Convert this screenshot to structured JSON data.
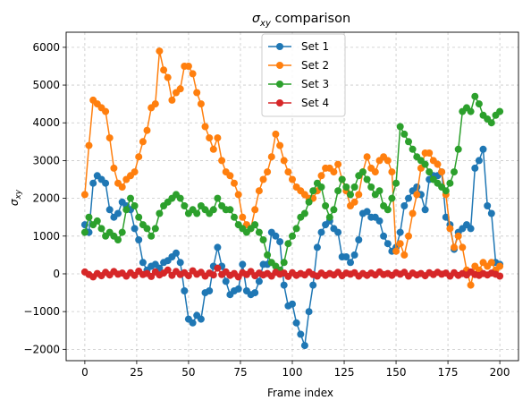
{
  "chart_data": {
    "type": "line",
    "title_prefix": "σ",
    "title_sub": "xy",
    "title_suffix": " comparison",
    "xlabel": "Frame index",
    "ylabel_prefix": "σ",
    "ylabel_sub": "xy",
    "xlim": [
      -9,
      209
    ],
    "ylim": [
      -2300,
      6400
    ],
    "xticks": [
      0,
      25,
      50,
      75,
      100,
      125,
      150,
      175,
      200
    ],
    "yticks": [
      -2000,
      -1000,
      0,
      1000,
      2000,
      3000,
      4000,
      5000,
      6000
    ],
    "grid": true,
    "legend_position": "top-center",
    "series": [
      {
        "name": "Set 1",
        "color": "#1f77b4",
        "x": [
          0,
          2,
          4,
          6,
          8,
          10,
          12,
          14,
          16,
          18,
          20,
          22,
          24,
          26,
          28,
          30,
          32,
          34,
          36,
          38,
          40,
          42,
          44,
          46,
          48,
          50,
          52,
          54,
          56,
          58,
          60,
          62,
          64,
          66,
          68,
          70,
          72,
          74,
          76,
          78,
          80,
          82,
          84,
          86,
          88,
          90,
          92,
          94,
          96,
          98,
          100,
          102,
          104,
          106,
          108,
          110,
          112,
          114,
          116,
          118,
          120,
          122,
          124,
          126,
          128,
          130,
          132,
          134,
          136,
          138,
          140,
          142,
          144,
          146,
          148,
          150,
          152,
          154,
          156,
          158,
          160,
          162,
          164,
          166,
          168,
          170,
          172,
          174,
          176,
          178,
          180,
          182,
          184,
          186,
          188,
          190,
          192,
          194,
          196,
          198,
          200
        ],
        "values": [
          1300,
          1100,
          2400,
          2600,
          2500,
          2400,
          1700,
          1500,
          1600,
          1900,
          1800,
          1700,
          1200,
          900,
          300,
          100,
          200,
          250,
          150,
          300,
          350,
          450,
          550,
          300,
          -450,
          -1200,
          -1300,
          -1100,
          -1200,
          -500,
          -450,
          200,
          700,
          200,
          -200,
          -550,
          -450,
          -400,
          250,
          -450,
          -550,
          -500,
          -200,
          250,
          250,
          1100,
          1000,
          850,
          -300,
          -850,
          -800,
          -1300,
          -1600,
          -1900,
          -1000,
          -300,
          700,
          1100,
          1300,
          1400,
          1200,
          1100,
          450,
          450,
          300,
          500,
          900,
          1600,
          1650,
          1500,
          1500,
          1400,
          1000,
          800,
          600,
          700,
          1100,
          1800,
          2000,
          2200,
          2300,
          2100,
          1700,
          2500,
          2600,
          2600,
          2700,
          1500,
          1300,
          650,
          1100,
          1200,
          1300,
          1200,
          2800,
          3000,
          3300,
          1800,
          1600,
          300,
          250
        ]
      },
      {
        "name": "Set 2",
        "color": "#ff7f0e",
        "x": [
          0,
          2,
          4,
          6,
          8,
          10,
          12,
          14,
          16,
          18,
          20,
          22,
          24,
          26,
          28,
          30,
          32,
          34,
          36,
          38,
          40,
          42,
          44,
          46,
          48,
          50,
          52,
          54,
          56,
          58,
          60,
          62,
          64,
          66,
          68,
          70,
          72,
          74,
          76,
          78,
          80,
          82,
          84,
          86,
          88,
          90,
          92,
          94,
          96,
          98,
          100,
          102,
          104,
          106,
          108,
          110,
          112,
          114,
          116,
          118,
          120,
          122,
          124,
          126,
          128,
          130,
          132,
          134,
          136,
          138,
          140,
          142,
          144,
          146,
          148,
          150,
          152,
          154,
          156,
          158,
          160,
          162,
          164,
          166,
          168,
          170,
          172,
          174,
          176,
          178,
          180,
          182,
          184,
          186,
          188,
          190,
          192,
          194,
          196,
          198,
          200
        ],
        "values": [
          2100,
          3400,
          4600,
          4500,
          4400,
          4300,
          3600,
          2800,
          2400,
          2300,
          2500,
          2600,
          2700,
          3100,
          3500,
          3800,
          4400,
          4500,
          5900,
          5400,
          5200,
          4600,
          4800,
          4900,
          5500,
          5500,
          5300,
          4800,
          4500,
          3900,
          3600,
          3300,
          3600,
          3000,
          2700,
          2600,
          2400,
          2100,
          1500,
          1300,
          1200,
          1700,
          2200,
          2500,
          2700,
          3100,
          3700,
          3400,
          3000,
          2700,
          2500,
          2300,
          2200,
          2100,
          2000,
          2000,
          2200,
          2600,
          2800,
          2800,
          2700,
          2900,
          2500,
          2200,
          1800,
          1900,
          2100,
          2700,
          3100,
          2800,
          2700,
          3000,
          3100,
          3000,
          2700,
          600,
          800,
          500,
          1000,
          1600,
          2100,
          2800,
          3200,
          3200,
          3000,
          2900,
          2700,
          2100,
          1200,
          700,
          1000,
          700,
          100,
          -300,
          200,
          100,
          300,
          200,
          300,
          100,
          200
        ]
      },
      {
        "name": "Set 3",
        "color": "#2ca02c",
        "x": [
          0,
          2,
          4,
          6,
          8,
          10,
          12,
          14,
          16,
          18,
          20,
          22,
          24,
          26,
          28,
          30,
          32,
          34,
          36,
          38,
          40,
          42,
          44,
          46,
          48,
          50,
          52,
          54,
          56,
          58,
          60,
          62,
          64,
          66,
          68,
          70,
          72,
          74,
          76,
          78,
          80,
          82,
          84,
          86,
          88,
          90,
          92,
          94,
          96,
          98,
          100,
          102,
          104,
          106,
          108,
          110,
          112,
          114,
          116,
          118,
          120,
          122,
          124,
          126,
          128,
          130,
          132,
          134,
          136,
          138,
          140,
          142,
          144,
          146,
          148,
          150,
          152,
          154,
          156,
          158,
          160,
          162,
          164,
          166,
          168,
          170,
          172,
          174,
          176,
          178,
          180,
          182,
          184,
          186,
          188,
          190,
          192,
          194,
          196,
          198,
          200
        ],
        "values": [
          1100,
          1500,
          1300,
          1400,
          1200,
          1000,
          1100,
          1000,
          900,
          1100,
          1700,
          2000,
          1800,
          1500,
          1300,
          1200,
          1000,
          1200,
          1600,
          1800,
          1900,
          2000,
          2100,
          2000,
          1800,
          1600,
          1700,
          1600,
          1800,
          1700,
          1600,
          1700,
          2000,
          1800,
          1700,
          1700,
          1500,
          1300,
          1200,
          1100,
          1200,
          1300,
          1100,
          900,
          500,
          300,
          200,
          100,
          300,
          800,
          1000,
          1200,
          1500,
          1600,
          1900,
          2200,
          2400,
          2300,
          1800,
          1500,
          1700,
          2200,
          2500,
          2300,
          2100,
          2300,
          2600,
          2700,
          2500,
          2300,
          2100,
          2200,
          1800,
          1700,
          2000,
          2400,
          3900,
          3700,
          3500,
          3300,
          3100,
          3000,
          2900,
          2700,
          2500,
          2400,
          2300,
          2200,
          2400,
          2700,
          3300,
          4300,
          4400,
          4300,
          4700,
          4500,
          4200,
          4100,
          4000,
          4200,
          4300
        ]
      },
      {
        "name": "Set 4",
        "color": "#d62728",
        "x": [
          0,
          2,
          4,
          6,
          8,
          10,
          12,
          14,
          16,
          18,
          20,
          22,
          24,
          26,
          28,
          30,
          32,
          34,
          36,
          38,
          40,
          42,
          44,
          46,
          48,
          50,
          52,
          54,
          56,
          58,
          60,
          62,
          64,
          66,
          68,
          70,
          72,
          74,
          76,
          78,
          80,
          82,
          84,
          86,
          88,
          90,
          92,
          94,
          96,
          98,
          100,
          102,
          104,
          106,
          108,
          110,
          112,
          114,
          116,
          118,
          120,
          122,
          124,
          126,
          128,
          130,
          132,
          134,
          136,
          138,
          140,
          142,
          144,
          146,
          148,
          150,
          152,
          154,
          156,
          158,
          160,
          162,
          164,
          166,
          168,
          170,
          172,
          174,
          176,
          178,
          180,
          182,
          184,
          186,
          188,
          190,
          192,
          194,
          196,
          198,
          200
        ],
        "values": [
          50,
          -20,
          -80,
          10,
          -50,
          40,
          -30,
          60,
          -10,
          20,
          -60,
          30,
          -40,
          70,
          -20,
          10,
          -70,
          50,
          -30,
          20,
          100,
          -40,
          60,
          -20,
          30,
          -50,
          80,
          -10,
          40,
          -60,
          20,
          -30,
          150,
          -20,
          50,
          -40,
          10,
          -80,
          30,
          -20,
          60,
          -50,
          20,
          -30,
          10,
          -60,
          40,
          -10,
          20,
          -70,
          30,
          -40,
          10,
          -30,
          50,
          -20,
          -60,
          20,
          -40,
          10,
          -30,
          40,
          -50,
          20,
          -10,
          30,
          -60,
          10,
          -40,
          20,
          -30,
          50,
          -20,
          10,
          -40,
          30,
          -10,
          40,
          -60,
          20,
          -30,
          10,
          -50,
          30,
          -20,
          40,
          -10,
          20,
          -60,
          30,
          -40,
          10,
          -30,
          50,
          -20,
          -40,
          10,
          -30,
          20,
          -10,
          -60
        ]
      }
    ]
  }
}
